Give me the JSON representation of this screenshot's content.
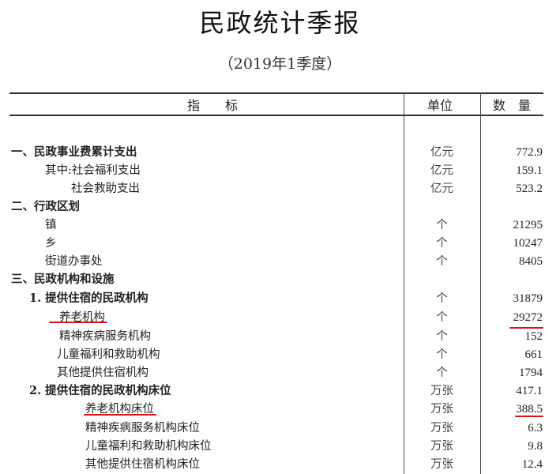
{
  "title": "民政统计季报",
  "subtitle": "（2019年1季度）",
  "header": {
    "indicator": "指　　标",
    "unit": "单位",
    "quantity": "数　量"
  },
  "highlight_color": "#d8141b",
  "rows": [
    {
      "label": "一、民政事业费累计支出",
      "unit": "亿元",
      "value": "772.9"
    },
    {
      "label": "其中:社会福利支出",
      "unit": "亿元",
      "value": "159.1"
    },
    {
      "label": "社会救助支出",
      "unit": "亿元",
      "value": "523.2"
    },
    {
      "label": "二、行政区划",
      "unit": "",
      "value": ""
    },
    {
      "label": "镇",
      "unit": "个",
      "value": "21295"
    },
    {
      "label": "乡",
      "unit": "个",
      "value": "10247"
    },
    {
      "label": "街道办事处",
      "unit": "个",
      "value": "8405"
    },
    {
      "label": "三、民政机构和设施",
      "unit": "",
      "value": ""
    },
    {
      "label": "1. 提供住宿的民政机构",
      "unit": "个",
      "value": "31879"
    },
    {
      "label": "养老机构",
      "unit": "个",
      "value": "29272",
      "highlighted": true
    },
    {
      "label": "精神疾病服务机构",
      "unit": "个",
      "value": "152"
    },
    {
      "label": "儿童福利和救助机构",
      "unit": "个",
      "value": "661"
    },
    {
      "label": "其他提供住宿机构",
      "unit": "个",
      "value": "1794"
    },
    {
      "label": "2. 提供住宿的民政机构床位",
      "unit": "万张",
      "value": "417.1"
    },
    {
      "label": "养老机构床位",
      "unit": "万张",
      "value": "388.5",
      "highlighted": true
    },
    {
      "label": "精神疾病服务机构床位",
      "unit": "万张",
      "value": "6.3"
    },
    {
      "label": "儿童福利和救助机构床位",
      "unit": "万张",
      "value": "9.8"
    },
    {
      "label": "其他提供住宿机构床位",
      "unit": "万张",
      "value": "12.4"
    }
  ]
}
